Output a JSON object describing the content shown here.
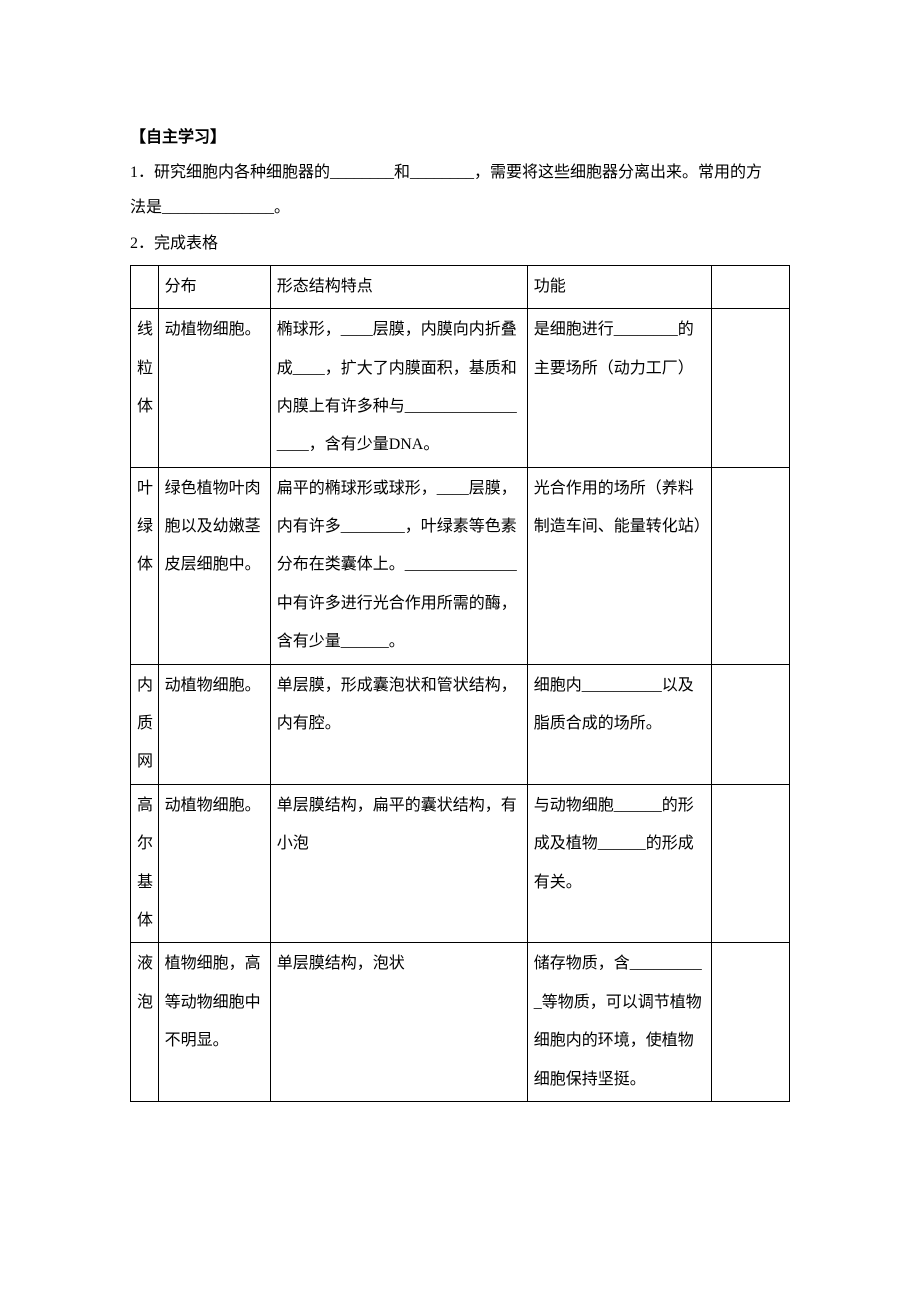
{
  "heading": "【自主学习】",
  "intro_line1": "1．研究细胞内各种细胞器的________和________，需要将这些细胞器分离出来。常用的方",
  "intro_line2": "法是______________。",
  "intro_line3": "2．完成表格",
  "table": {
    "header": {
      "c2": "分布",
      "c3": "形态结构特点",
      "c4": "功能"
    },
    "rows": [
      {
        "c1": "线粒体",
        "c2": "动植物细胞。",
        "c3": "椭球形，____层膜，内膜向内折叠成____，扩大了内膜面积，基质和内膜上有许多种与__________________，含有少量DNA。",
        "c4": "是细胞进行________的主要场所（动力工厂）"
      },
      {
        "c1": "叶绿体",
        "c2": "绿色植物叶肉胞以及幼嫩茎皮层细胞中。",
        "c3": "扁平的椭球形或球形，____层膜，内有许多________，叶绿素等色素分布在类囊体上。______________中有许多进行光合作用所需的酶，含有少量______。",
        "c4": "光合作用的场所（养料制造车间、能量转化站）"
      },
      {
        "c1": "内质网",
        "c2": "动植物细胞。",
        "c3": "单层膜，形成囊泡状和管状结构，内有腔。",
        "c4": "细胞内__________以及脂质合成的场所。"
      },
      {
        "c1": "高尔基体",
        "c2": "动植物细胞。",
        "c3": "单层膜结构，扁平的囊状结构，有小泡",
        "c4": "与动物细胞______的形成及植物______的形成有关。"
      },
      {
        "c1": "液泡",
        "c2": "植物细胞，高等动物细胞中不明显。",
        "c3": "单层膜结构，泡状",
        "c4": "储存物质，含__________等物质，可以调节植物细胞内的环境，使植物细胞保持坚挺。"
      }
    ]
  }
}
